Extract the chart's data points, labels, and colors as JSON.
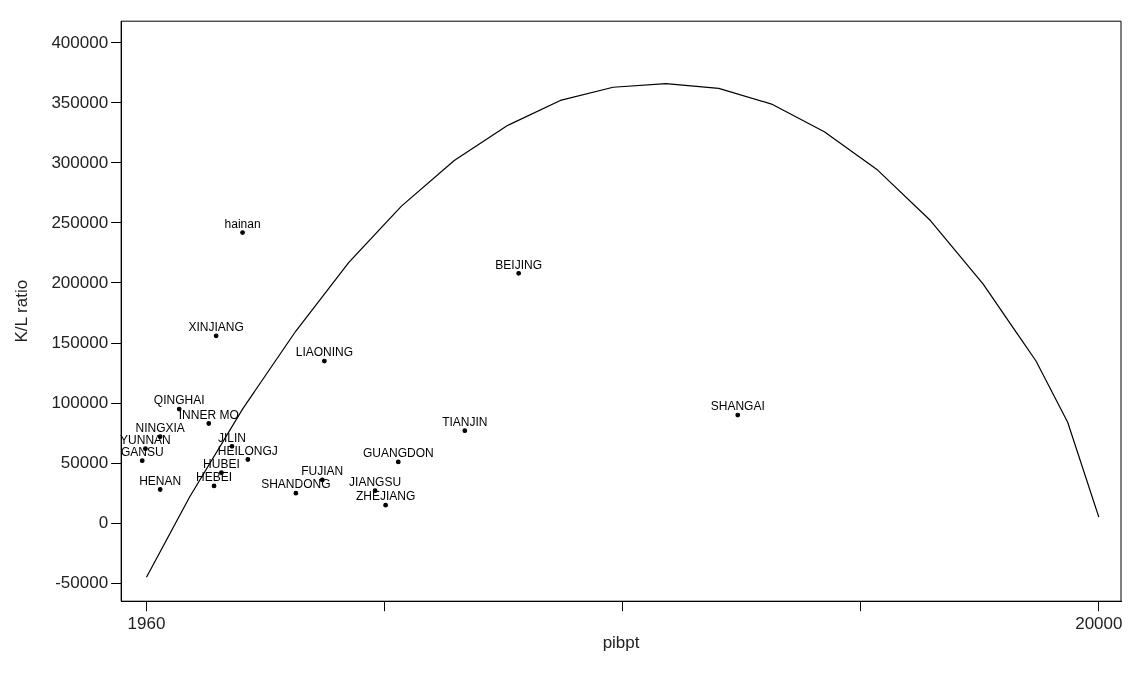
{
  "chart_data": {
    "type": "scatter",
    "xlabel": "pibpt",
    "ylabel": "K/L ratio",
    "xlim": [
      1480,
      20420
    ],
    "ylim": [
      -65000,
      418000
    ],
    "xticks": [
      1960,
      {
        "value": 6470,
        "label": null
      },
      {
        "value": 10980,
        "label": null
      },
      {
        "value": 15490,
        "label": null
      },
      20000
    ],
    "yticks": [
      -50000,
      0,
      50000,
      100000,
      150000,
      200000,
      250000,
      300000,
      350000,
      400000
    ],
    "marker": "none",
    "series": [
      {
        "type": "line",
        "line_style": "solid",
        "color": "#000000",
        "x": [
          1960,
          2780,
          3780,
          4790,
          5790,
          6790,
          7790,
          8790,
          9800,
          10800,
          11800,
          12800,
          13800,
          14800,
          15810,
          16810,
          17810,
          18810,
          19410,
          20000
        ],
        "values": [
          -45000,
          22000,
          95000,
          160000,
          217000,
          264000,
          302000,
          331000,
          352000,
          363000,
          366000,
          362000,
          349000,
          326000,
          294000,
          252000,
          199000,
          135000,
          84000,
          5000
        ]
      },
      {
        "marker": "circle",
        "color": "#000000",
        "x": [
          3780,
          9010,
          3280,
          5330,
          2580,
          3140,
          13160,
          7990,
          1940,
          2220,
          3580,
          3880,
          6730,
          1880,
          3380,
          3240,
          2220,
          5290,
          4790,
          6290,
          6490
        ],
        "values": [
          242000,
          208000,
          156000,
          135000,
          95000,
          83000,
          90000,
          77000,
          62000,
          72000,
          64000,
          53000,
          51000,
          52000,
          42000,
          31000,
          28000,
          36000,
          25000,
          27000,
          15000
        ],
        "value_labels": [
          "hainan",
          "BEIJING",
          "XINJIANG",
          "LIAONING",
          "QINGHAI",
          "INNER MO",
          "SHANGAI",
          "TIANJIN",
          "YUNNAN",
          "NINGXIA",
          "JILIN",
          "HEILONGJ",
          "GUANGDON",
          "GANSU",
          "HUBEI",
          "HEBEI",
          "HENAN",
          "FUJIAN",
          "SHANDONG",
          "JIANGSU",
          "ZHEJIANG"
        ]
      }
    ]
  }
}
